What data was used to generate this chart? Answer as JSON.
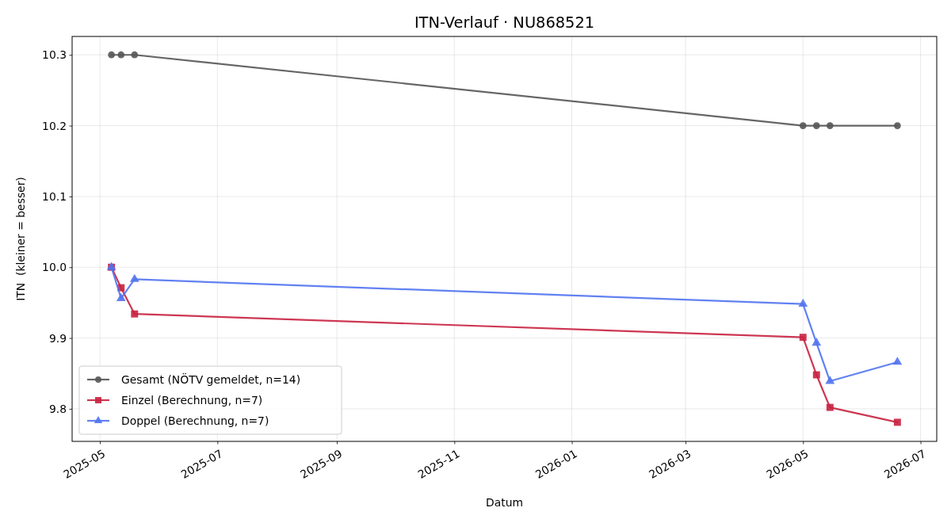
{
  "chart_data": {
    "type": "line",
    "title": "ITN-Verlauf · NU868521",
    "xlabel": "Datum",
    "ylabel": "ITN  (kleiner = besser)",
    "x": [
      "2025-05-07",
      "2025-05-12",
      "2025-05-19",
      "2026-05-01",
      "2026-05-08",
      "2026-05-15",
      "2026-06-19"
    ],
    "series": [
      {
        "name": "Gesamt (NÖTV gemeldet, n=14)",
        "color": "#555555",
        "marker": "circle",
        "values": [
          10.3,
          10.3,
          10.3,
          10.2,
          10.2,
          10.2,
          10.2
        ]
      },
      {
        "name": "Einzel (Berechnung, n=7)",
        "color": "#c8213f",
        "marker": "square",
        "values": [
          10.0,
          9.971,
          9.934,
          9.901,
          9.848,
          9.802,
          9.781
        ]
      },
      {
        "name": "Doppel (Berechnung, n=7)",
        "color": "#5173f0",
        "marker": "triangle",
        "values": [
          10.0,
          9.956,
          9.983,
          9.948,
          9.893,
          9.839,
          9.866
        ]
      }
    ],
    "xlim": [
      "2025-04-16T14:00",
      "2026-07-09T10:00"
    ],
    "ylim": [
      9.754,
      10.326
    ],
    "xticks": [
      "2025-05",
      "2025-07",
      "2025-09",
      "2025-11",
      "2026-01",
      "2026-03",
      "2026-05",
      "2026-07"
    ],
    "yticks": [
      9.8,
      9.9,
      {
        "value": 10.0,
        "label": "10.0"
      },
      10.1,
      10.2,
      10.3
    ],
    "grid": true,
    "legend": "bottom left",
    "line_style": "solid"
  }
}
